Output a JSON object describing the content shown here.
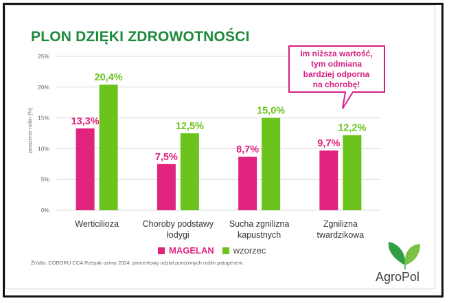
{
  "title": "PLON DZIĘKI ZDROWOTNOŚCI",
  "callout": "Im niższa wartość, tym odmiana bardziej odporna na chorobę!",
  "source": "Źródło: COBORU CCA Rzepak ozimy 2024, procentowy udział porażonych roślin patogenem.",
  "logo": "AgroPol",
  "legend": {
    "magelan": "MAGELAN",
    "wzorzec": "wzorzec"
  },
  "colors": {
    "magelan": "#e0237d",
    "wzorzec": "#6cc31d",
    "title": "#1e8a3c",
    "callout_border": "#d61f83"
  },
  "chart_data": {
    "type": "bar",
    "ylabel": "porażenie roślin [%]",
    "ylim": [
      0,
      25
    ],
    "yticks": [
      "0%",
      "5%",
      "10%",
      "15%",
      "20%",
      "25%"
    ],
    "categories": [
      [
        "Werticilioza"
      ],
      [
        "Choroby podstawy",
        "łodygi"
      ],
      [
        "Sucha zgnilizna",
        "kapustnych"
      ],
      [
        "Zgnilizna",
        "twardzikowa"
      ]
    ],
    "series": [
      {
        "name": "MAGELAN",
        "values": [
          13.3,
          7.5,
          8.7,
          9.7
        ],
        "labels": [
          "13,3%",
          "7,5%",
          "8,7%",
          "9,7%"
        ]
      },
      {
        "name": "wzorzec",
        "values": [
          20.4,
          12.5,
          15.0,
          12.2
        ],
        "labels": [
          "20,4%",
          "12,5%",
          "15,0%",
          "12,2%"
        ]
      }
    ],
    "grid": true,
    "legend_position": "bottom"
  }
}
